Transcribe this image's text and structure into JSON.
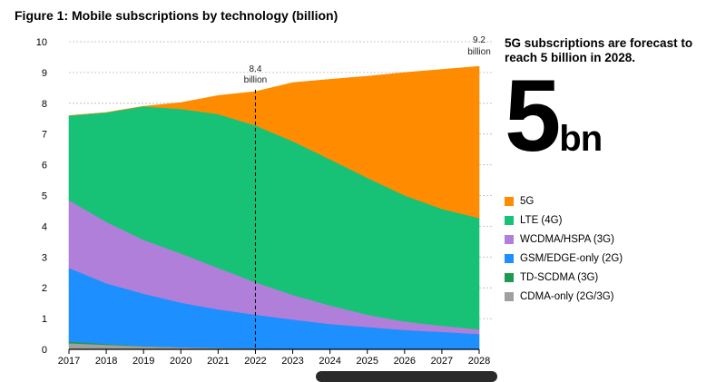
{
  "chart_data": {
    "type": "area",
    "title": "Figure 1: Mobile subscriptions by technology (billion)",
    "xlabel": "",
    "ylabel": "",
    "x": [
      2017,
      2018,
      2019,
      2020,
      2021,
      2022,
      2023,
      2024,
      2025,
      2026,
      2027,
      2028
    ],
    "ylim": [
      0,
      10
    ],
    "yticks": [
      0,
      1,
      2,
      3,
      4,
      5,
      6,
      7,
      8,
      9,
      10
    ],
    "stacked": true,
    "series": [
      {
        "name": "CDMA-only (2G/3G)",
        "color": "#a0a0a0",
        "values": [
          0.2,
          0.15,
          0.1,
          0.07,
          0.05,
          0.03,
          0.02,
          0.01,
          0.01,
          0.01,
          0.01,
          0.0
        ]
      },
      {
        "name": "TD-SCDMA (3G)",
        "color": "#1d9a4d",
        "values": [
          0.05,
          0.03,
          0.01,
          0.0,
          0.0,
          0.0,
          0.0,
          0.0,
          0.0,
          0.0,
          0.0,
          0.0
        ]
      },
      {
        "name": "GSM/EDGE-only (2G)",
        "color": "#1e8fff",
        "values": [
          2.4,
          1.97,
          1.7,
          1.45,
          1.25,
          1.1,
          0.95,
          0.82,
          0.72,
          0.62,
          0.56,
          0.5
        ]
      },
      {
        "name": "WCDMA/HSPA (3G)",
        "color": "#b07fd9",
        "values": [
          2.2,
          2.0,
          1.75,
          1.6,
          1.35,
          1.05,
          0.8,
          0.6,
          0.4,
          0.28,
          0.2,
          0.15
        ]
      },
      {
        "name": "LTE (4G)",
        "color": "#17c277",
        "values": [
          2.75,
          3.55,
          4.34,
          4.7,
          5.0,
          5.1,
          5.0,
          4.75,
          4.45,
          4.1,
          3.8,
          3.62
        ]
      },
      {
        "name": "5G",
        "color": "#ff8c00",
        "values": [
          0.0,
          0.0,
          0.0,
          0.2,
          0.6,
          1.1,
          1.9,
          2.6,
          3.3,
          3.99,
          4.53,
          4.93
        ]
      }
    ],
    "legend_order": [
      "5G",
      "LTE (4G)",
      "WCDMA/HSPA (3G)",
      "GSM/EDGE-only (2G)",
      "TD-SCDMA (3G)",
      "CDMA-only (2G/3G)"
    ],
    "annotations": [
      {
        "x": 2022,
        "value": "8.4",
        "unit": "billion",
        "dashed_line": true
      },
      {
        "x": 2028,
        "value": "9.2",
        "unit": "billion",
        "dashed_line": false
      }
    ]
  },
  "side_panel": {
    "forecast_text": "5G subscriptions are forecast to reach 5 billion in 2028.",
    "big_number": "5",
    "big_unit": "bn"
  },
  "colors": {
    "5G": "#ff8c00",
    "LTE (4G)": "#17c277",
    "WCDMA/HSPA (3G)": "#b07fd9",
    "GSM/EDGE-only (2G)": "#1e8fff",
    "TD-SCDMA (3G)": "#1d9a4d",
    "CDMA-only (2G/3G)": "#a0a0a0"
  }
}
